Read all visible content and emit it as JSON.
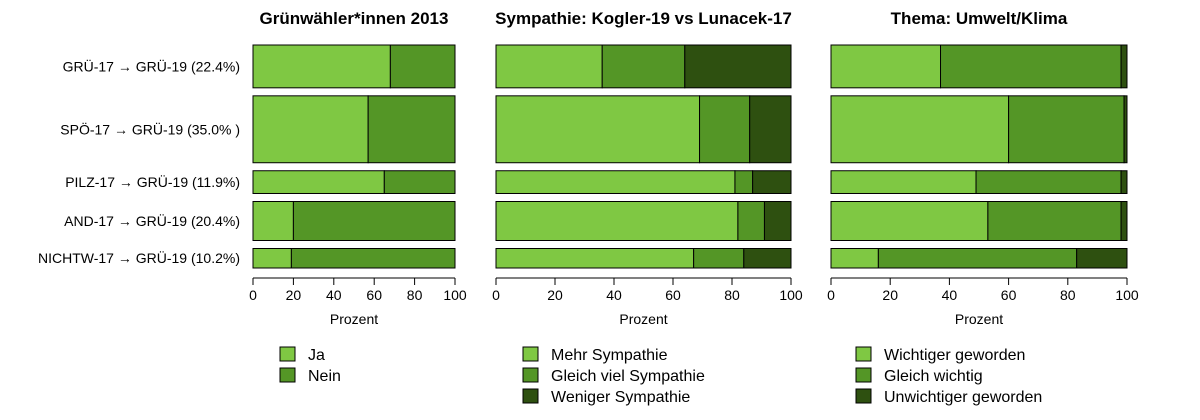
{
  "chart_data": {
    "type": "bar",
    "orientation": "horizontal-stacked",
    "categories": [
      "GRÜ-17 → GRÜ-19 (22.4%)",
      "SPÖ-17 → GRÜ-19 (35.0% )",
      "PILZ-17 → GRÜ-19 (11.9%)",
      "AND-17 → GRÜ-19 (20.4%)",
      "NICHTW-17 → GRÜ-19 (10.2%)"
    ],
    "bar_weights": [
      22.4,
      35.0,
      11.9,
      20.4,
      10.2
    ],
    "xlim": [
      0,
      100
    ],
    "xticks": [
      0,
      20,
      40,
      60,
      80,
      100
    ],
    "xlabel": "Prozent",
    "grid": false,
    "panels": [
      {
        "title": "Grünwähler*innen 2013",
        "series": [
          {
            "name": "Ja",
            "color": "#7fc843",
            "values": [
              68,
              57,
              65,
              20,
              19
            ]
          },
          {
            "name": "Nein",
            "color": "#549626",
            "values": [
              32,
              43,
              35,
              80,
              81
            ]
          }
        ]
      },
      {
        "title": "Sympathie: Kogler-19 vs Lunacek-17",
        "series": [
          {
            "name": "Mehr Sympathie",
            "color": "#7fc843",
            "values": [
              36,
              69,
              81,
              82,
              67
            ]
          },
          {
            "name": "Gleich viel Sympathie",
            "color": "#549626",
            "values": [
              28,
              17,
              6,
              9,
              17
            ]
          },
          {
            "name": "Weniger Sympathie",
            "color": "#2e5010",
            "values": [
              36,
              14,
              13,
              9,
              16
            ]
          }
        ]
      },
      {
        "title": "Thema: Umwelt/Klima",
        "series": [
          {
            "name": "Wichtiger geworden",
            "color": "#7fc843",
            "values": [
              37,
              60,
              49,
              53,
              16
            ]
          },
          {
            "name": "Gleich wichtig",
            "color": "#549626",
            "values": [
              61,
              39,
              49,
              45,
              67
            ]
          },
          {
            "name": "Unwichtiger geworden",
            "color": "#2e5010",
            "values": [
              2,
              1,
              2,
              2,
              17
            ]
          }
        ]
      }
    ]
  }
}
